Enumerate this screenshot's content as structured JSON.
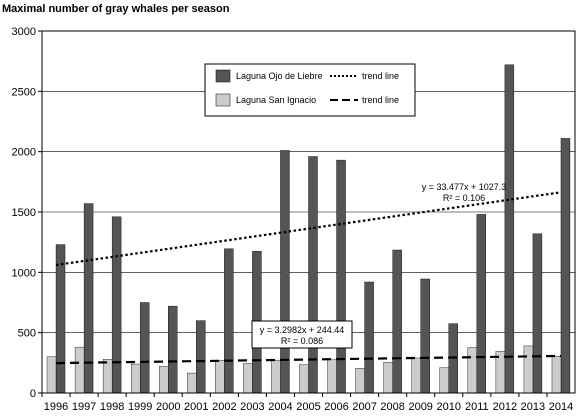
{
  "chart_data": {
    "type": "bar",
    "title": "Maximal number of gray whales per season",
    "xlabel": "",
    "ylabel": "",
    "ylim": [
      0,
      3000
    ],
    "yticks": [
      "0",
      "500",
      "1000",
      "1500",
      "2000",
      "2500",
      "3000"
    ],
    "grid": true,
    "legend_position": "top-center",
    "categories": [
      "1996",
      "1997",
      "1998",
      "1999",
      "2000",
      "2001",
      "2002",
      "2003",
      "2004",
      "2005",
      "2006",
      "2007",
      "2008",
      "2009",
      "2010",
      "2011",
      "2012",
      "2013",
      "2014"
    ],
    "series": [
      {
        "name": "Laguna Ojo de Liebre",
        "color": "#555555",
        "values": [
          1230,
          1570,
          1460,
          750,
          720,
          600,
          1195,
          1175,
          2010,
          1960,
          1930,
          920,
          1185,
          945,
          575,
          1480,
          2720,
          1320,
          2110
        ]
      },
      {
        "name": "Laguna San Ignacio",
        "color": "#cccccc",
        "values": [
          300,
          380,
          280,
          240,
          220,
          165,
          270,
          245,
          270,
          235,
          275,
          205,
          255,
          290,
          210,
          375,
          345,
          390,
          305
        ]
      }
    ],
    "trend_lines": [
      {
        "series": "Laguna Ojo de Liebre",
        "label": "trend line",
        "style": "dotted",
        "slope": 33.477,
        "intercept": 1027.3,
        "equation": "y = 33.477x + 1027.3",
        "r2": "R² = 0.106"
      },
      {
        "series": "Laguna San Ignacio",
        "label": "trend line",
        "style": "dashed",
        "slope": 3.2982,
        "intercept": 244.44,
        "equation": "y = 3.2982x + 244.44",
        "r2": "R² = 0.086"
      }
    ]
  }
}
